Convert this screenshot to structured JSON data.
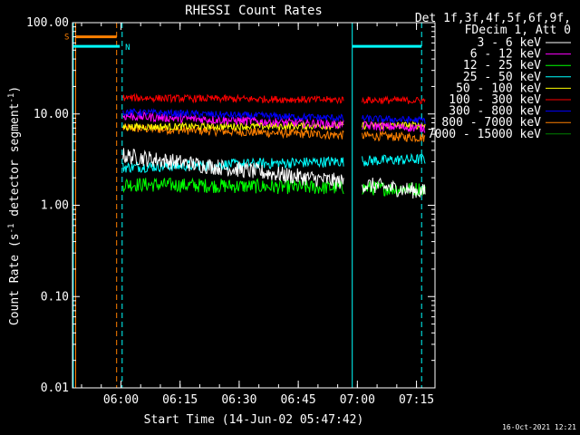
{
  "chart_data": {
    "type": "line",
    "title": "RHESSI Count Rates",
    "xlabel": "Start Time (14-Jun-02 05:47:42)",
    "ylabel_parts": [
      "Count Rate (s",
      "-1",
      " detector segment",
      "-1",
      ")"
    ],
    "y_scale": "log",
    "ylim": [
      0.01,
      100
    ],
    "y_ticks": [
      {
        "value": 0.01,
        "label": "0.01"
      },
      {
        "value": 0.1,
        "label": "0.10"
      },
      {
        "value": 1,
        "label": "1.00"
      },
      {
        "value": 10,
        "label": "10.00"
      },
      {
        "value": 100,
        "label": "100.00"
      }
    ],
    "x_range_minutes": [
      0,
      92
    ],
    "x_ticks": [
      {
        "minute": 12.3,
        "label": "06:00"
      },
      {
        "minute": 27.3,
        "label": "06:15"
      },
      {
        "minute": 42.3,
        "label": "06:30"
      },
      {
        "minute": 57.3,
        "label": "06:45"
      },
      {
        "minute": 72.3,
        "label": "07:00"
      },
      {
        "minute": 87.3,
        "label": "07:15"
      }
    ],
    "legend_header": [
      "Det 1f,3f,4f,5f,6f,9f,",
      "FDecim 1, Att 0"
    ],
    "series": [
      {
        "name": "3 - 6 keV",
        "color": "#ffffff",
        "start": 3.5,
        "end": 1.4,
        "noise": 0.09
      },
      {
        "name": "6 - 12 keV",
        "color": "#ff00ff",
        "start": 9.5,
        "end": 7.0,
        "noise": 0.05
      },
      {
        "name": "12 - 25 keV",
        "color": "#00ff00",
        "start": 1.7,
        "end": 1.5,
        "noise": 0.08
      },
      {
        "name": "25 - 50 keV",
        "color": "#00ffff",
        "start": 2.6,
        "end": 3.2,
        "noise": 0.06
      },
      {
        "name": "50 - 100 keV",
        "color": "#ffff00",
        "start": 7.2,
        "end": 7.5,
        "noise": 0.04
      },
      {
        "name": "100 - 300 keV",
        "color": "#ff0000",
        "start": 15.0,
        "end": 14.0,
        "noise": 0.04
      },
      {
        "name": "300 - 800 keV",
        "color": "#0000ff",
        "start": 10.5,
        "end": 8.5,
        "noise": 0.04
      },
      {
        "name": "800 - 7000 keV",
        "color": "#ff8000",
        "start": 7.0,
        "end": 5.5,
        "noise": 0.05
      },
      {
        "name": "7000 - 15000 keV",
        "color": "#008000",
        "start": 0,
        "end": 0,
        "noise": 0
      }
    ],
    "data_segments_minutes": [
      [
        12.8,
        68.8
      ],
      [
        73.5,
        89.5
      ]
    ],
    "annotations": [
      {
        "label": "S",
        "color": "#ff8000",
        "minute_start": 0.8,
        "minute_end": 11.2,
        "value": 70
      },
      {
        "label": "N",
        "color": "#00ffff",
        "minute_start": 0,
        "minute_end": 12.0,
        "value": 55
      },
      {
        "label": "",
        "color": "#00ffff",
        "minute_start": 71.0,
        "minute_end": 88.6,
        "value": 55
      }
    ],
    "vlines": [
      {
        "minute": 0.2,
        "color": "#00ffff",
        "style": "solid"
      },
      {
        "minute": 0.8,
        "color": "#ff8000",
        "style": "solid"
      },
      {
        "minute": 11.2,
        "color": "#ff8000",
        "style": "dashed"
      },
      {
        "minute": 12.6,
        "color": "#00ffff",
        "style": "dashed"
      },
      {
        "minute": 71.0,
        "color": "#00ffff",
        "style": "solid"
      },
      {
        "minute": 88.6,
        "color": "#00ffff",
        "style": "dashed"
      }
    ],
    "timestamp": "16-Oct-2021 12:21"
  }
}
